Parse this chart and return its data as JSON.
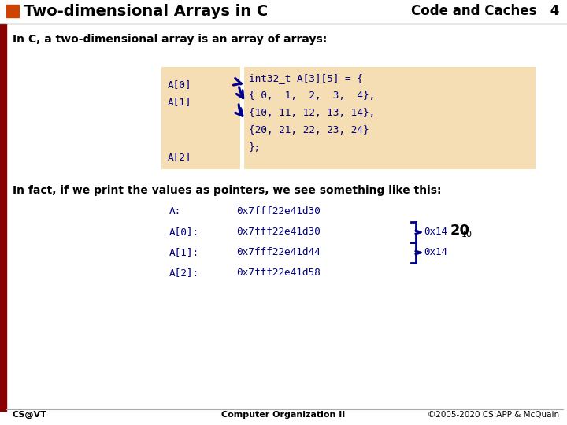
{
  "title": "Two-dimensional Arrays in C",
  "title_right": "Code and Caches   4",
  "bg_color": "#ffffff",
  "slide_border_color": "#8B0000",
  "title_square_color": "#cc4400",
  "intro_text": "In C, a two-dimensional array is an array of arrays:",
  "code_bg_color": "#f5deb3",
  "code_text": [
    "int32_t A[3][5] = {",
    "{ 0,  1,  2,  3,  4},",
    "{10, 11, 12, 13, 14},",
    "{20, 21, 22, 23, 24}",
    "};"
  ],
  "labels": [
    "A[0]",
    "A[1]",
    "A[2]"
  ],
  "pointer_text": "In fact, if we print the values as pointers, we see something like this:",
  "pointer_rows": [
    [
      "A:",
      "0x7fff22e41d30"
    ],
    [
      "A[0]:",
      "0x7fff22e41d30"
    ],
    [
      "A[1]:",
      "0x7fff22e41d44"
    ],
    [
      "A[2]:",
      "0x7fff22e41d58"
    ]
  ],
  "brace_label1": "0x14",
  "brace_label2": "0x14",
  "twenty_text": "20",
  "ten_subscript": "10",
  "footer_left": "CS@VT",
  "footer_center": "Computer Organization II",
  "footer_right": "©2005-2020 CS:APP & McQuain",
  "mono_color": "#000080",
  "arrow_color": "#00008B",
  "text_color": "#000000",
  "dark_red": "#8B0000"
}
